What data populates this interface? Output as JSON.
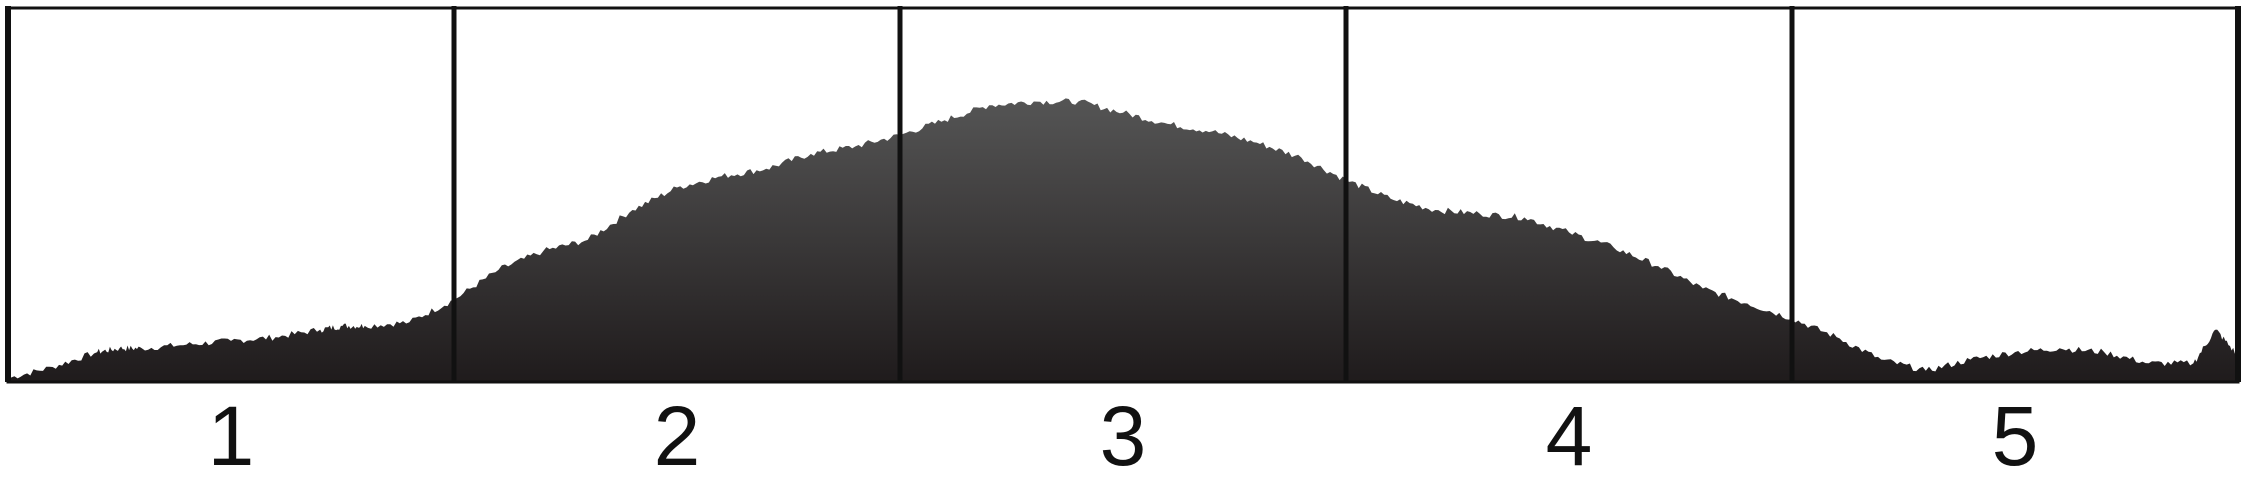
{
  "chart_data": {
    "type": "area",
    "title": "",
    "xlabel": "",
    "ylabel": "",
    "categories": [
      "1",
      "2",
      "3",
      "4",
      "5"
    ],
    "xlim": [
      0,
      5
    ],
    "ylim": [
      0,
      1
    ],
    "grid": false,
    "legend": "none",
    "colors": {
      "fill_top": "#555555",
      "fill_bottom": "#1f1b1c",
      "frame": "#111111"
    },
    "series": [
      {
        "x": [
          0.0,
          0.1,
          0.2,
          0.25,
          0.3,
          0.4,
          0.5,
          0.6,
          0.7,
          0.75,
          0.8,
          0.9,
          1.0,
          1.1,
          1.2,
          1.3,
          1.4,
          1.5,
          1.6,
          1.7,
          1.8,
          1.9,
          2.0,
          2.1,
          2.2,
          2.3,
          2.4,
          2.5,
          2.6,
          2.7,
          2.8,
          2.9,
          3.0,
          3.1,
          3.2,
          3.3,
          3.4,
          3.5,
          3.6,
          3.7,
          3.8,
          3.9,
          4.0,
          4.1,
          4.2,
          4.3,
          4.4,
          4.5,
          4.6,
          4.7,
          4.8,
          4.9,
          4.95,
          5.0
        ],
        "y": [
          0.01,
          0.04,
          0.08,
          0.09,
          0.09,
          0.1,
          0.11,
          0.12,
          0.14,
          0.15,
          0.15,
          0.16,
          0.22,
          0.3,
          0.35,
          0.38,
          0.46,
          0.52,
          0.55,
          0.57,
          0.61,
          0.63,
          0.66,
          0.7,
          0.74,
          0.75,
          0.75,
          0.72,
          0.69,
          0.67,
          0.64,
          0.6,
          0.54,
          0.49,
          0.46,
          0.45,
          0.44,
          0.4,
          0.36,
          0.31,
          0.25,
          0.21,
          0.17,
          0.12,
          0.06,
          0.03,
          0.06,
          0.08,
          0.09,
          0.08,
          0.05,
          0.05,
          0.14,
          0.07
        ]
      }
    ]
  }
}
